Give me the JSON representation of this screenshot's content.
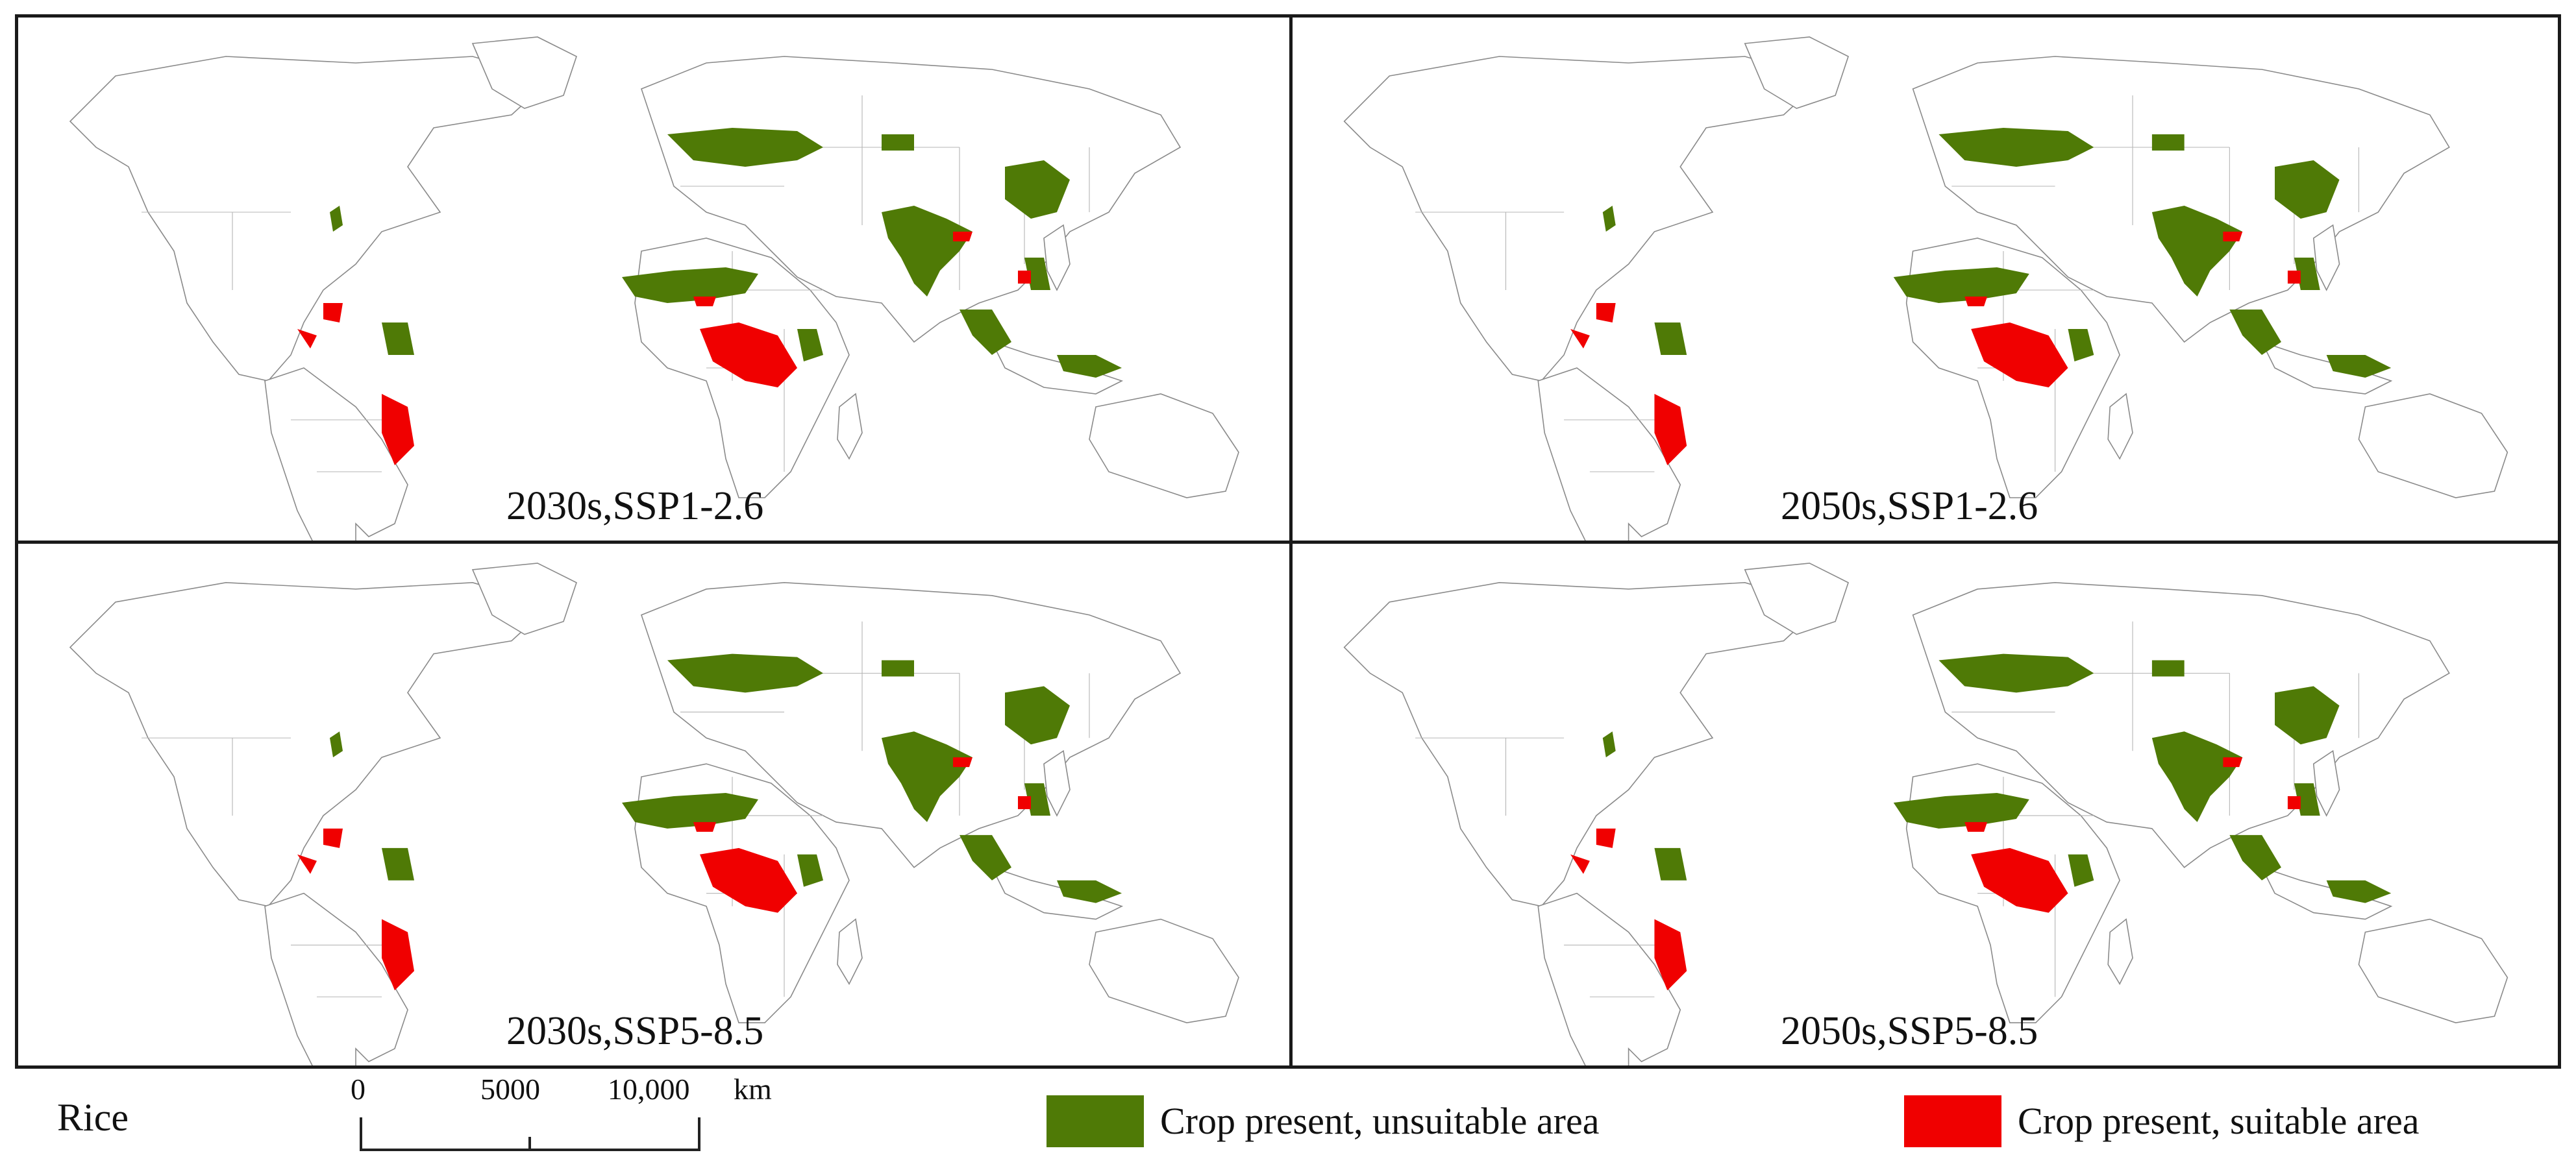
{
  "colors": {
    "unsuitable": "#4f7a06",
    "suitable": "#f00000",
    "country_outline": "#8a8a8a",
    "frame": "#1a1a1a"
  },
  "panels": [
    {
      "label": "2030s,SSP1-2.6"
    },
    {
      "label": "2050s,SSP1-2.6"
    },
    {
      "label": "2030s,SSP5-8.5"
    },
    {
      "label": "2050s,SSP5-8.5"
    }
  ],
  "legend": {
    "crop": "Rice",
    "unsuitable_label": "Crop present, unsuitable area",
    "suitable_label": "Crop present, suitable area"
  },
  "scale": {
    "ticks": [
      "0",
      "5000",
      "10,000"
    ],
    "unit": "km"
  }
}
